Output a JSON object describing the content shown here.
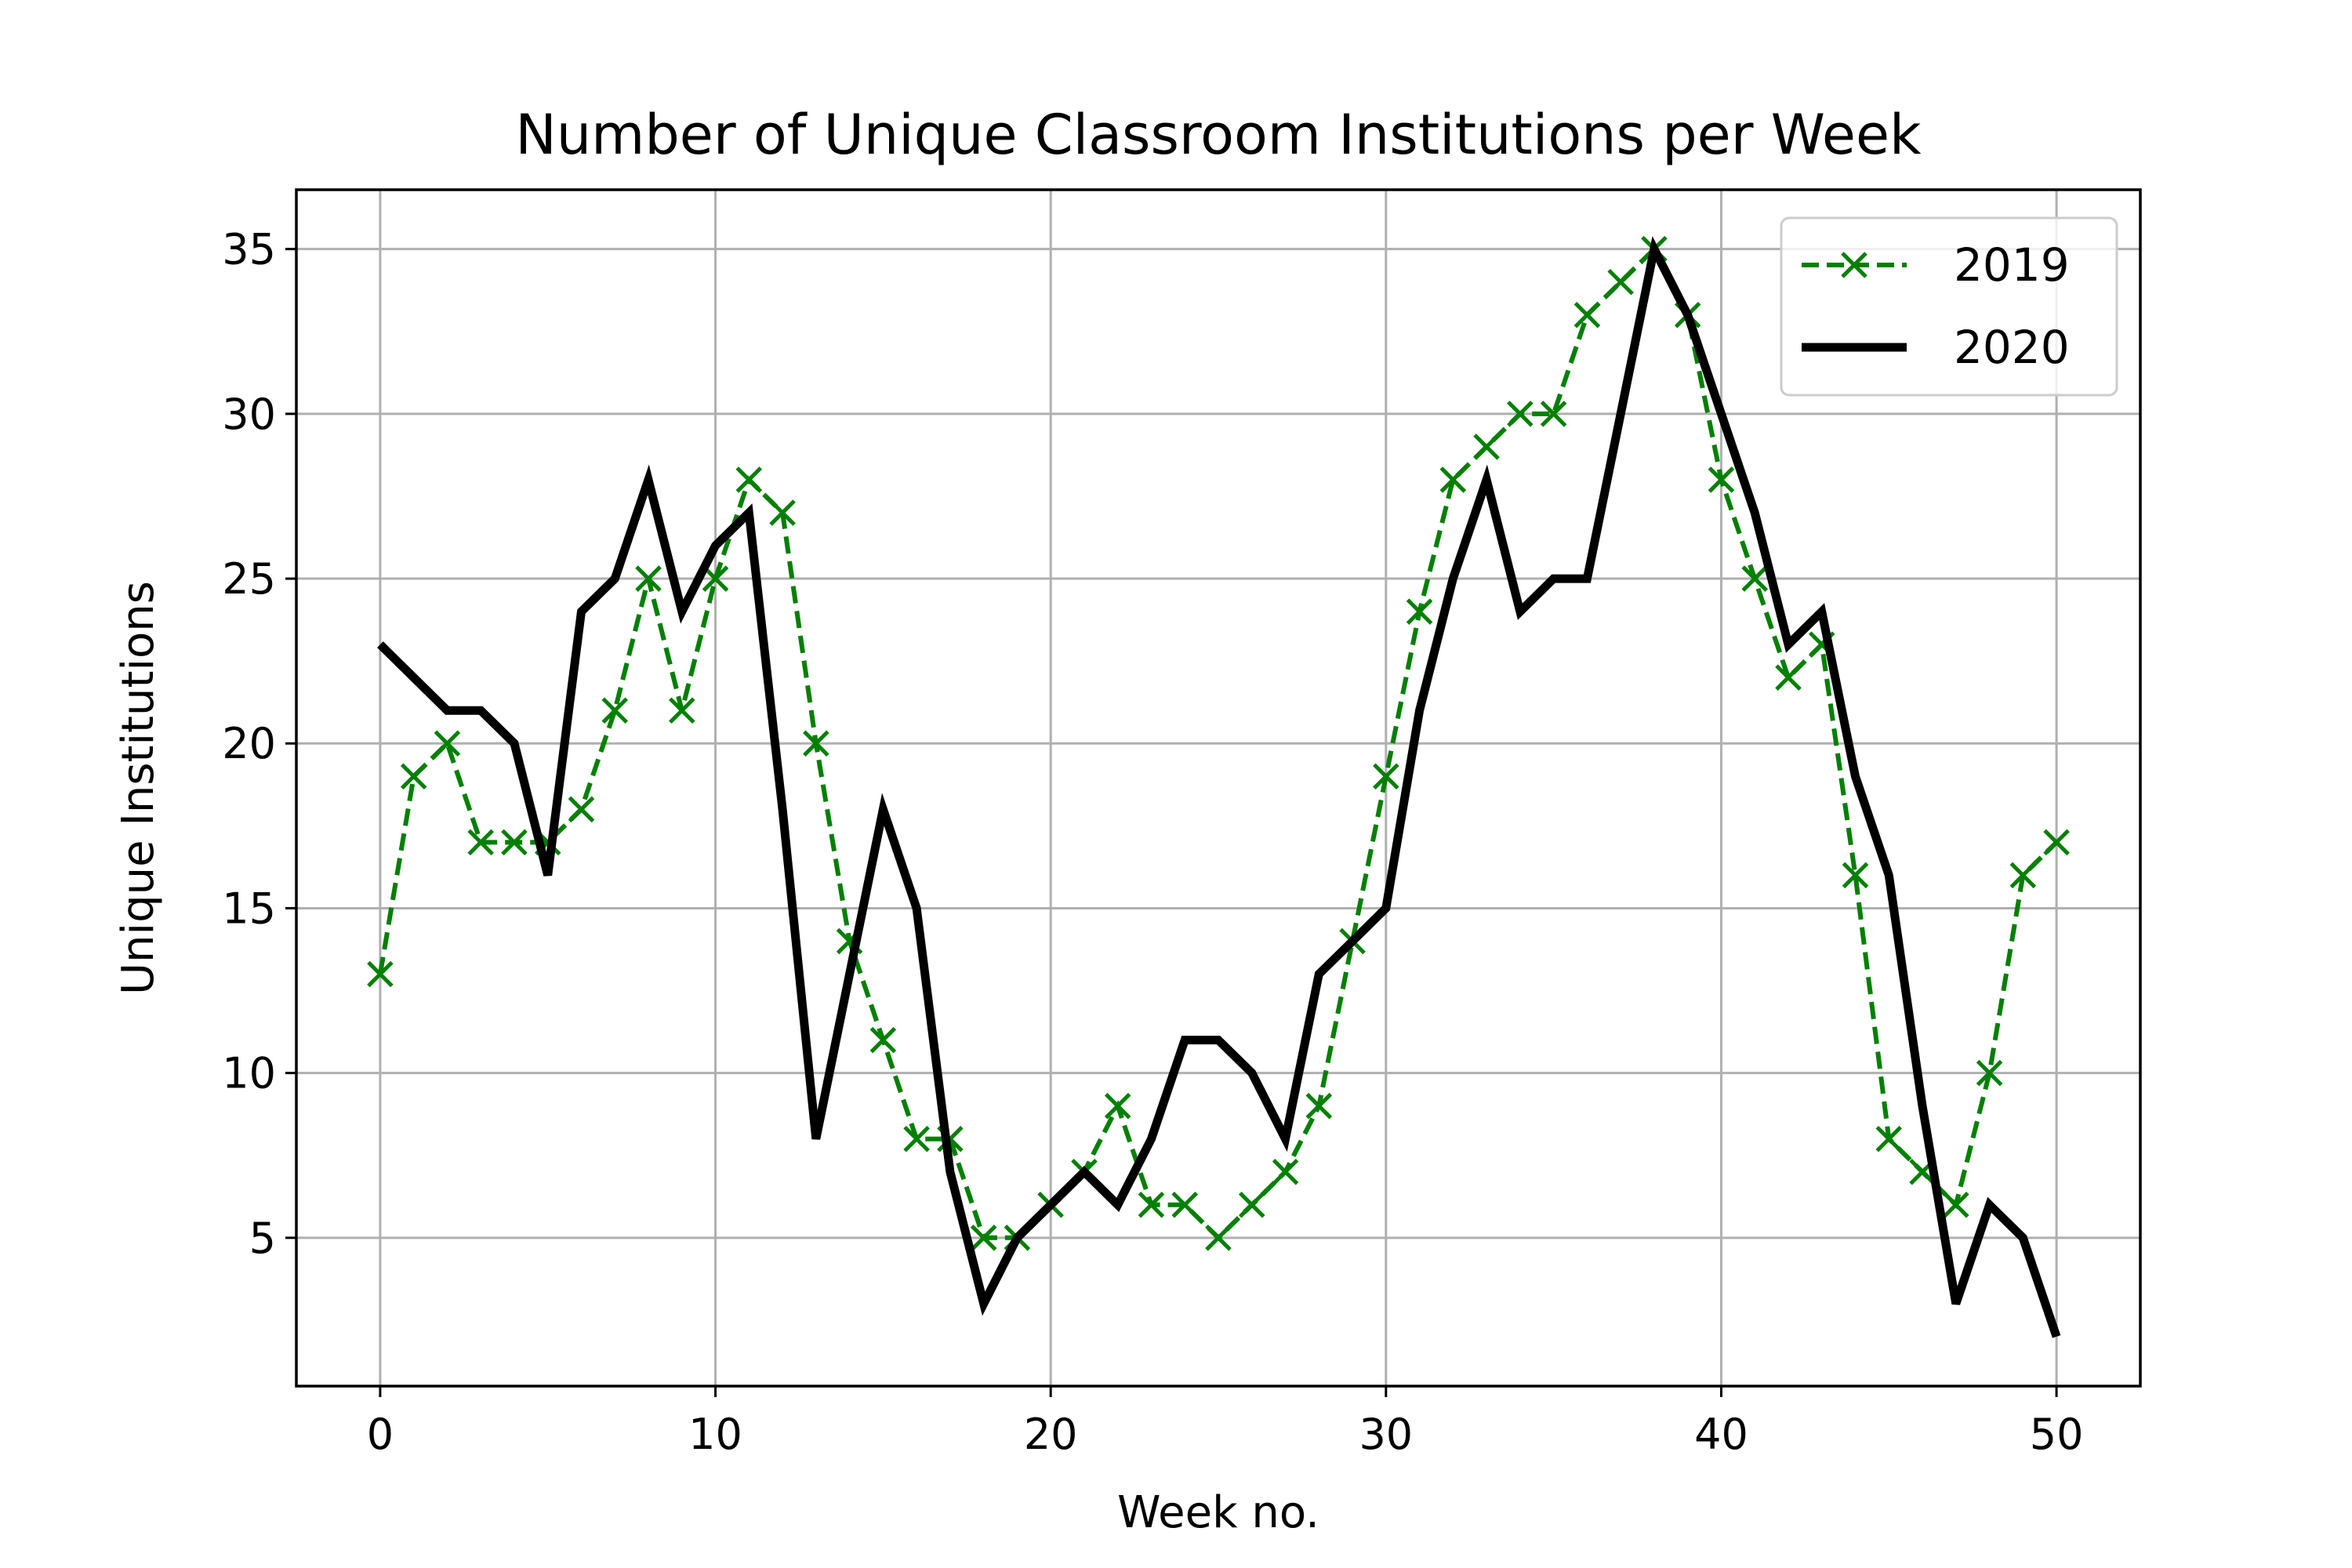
{
  "chart_data": {
    "type": "line",
    "title": "Number of Unique Classroom Institutions per Week",
    "xlabel": "Week no.",
    "ylabel": "Unique Institutions",
    "xlim": [
      -2.5,
      52.5
    ],
    "ylim": [
      0.5,
      36.8
    ],
    "xticks": [
      0,
      10,
      20,
      30,
      40,
      50
    ],
    "yticks": [
      5,
      10,
      15,
      20,
      25,
      30,
      35
    ],
    "grid": true,
    "legend_position": "top-right",
    "series": [
      {
        "name": "2019",
        "color": "#008000",
        "style": "dashed",
        "marker": "x",
        "x": [
          0,
          1,
          2,
          3,
          4,
          5,
          6,
          7,
          8,
          9,
          10,
          11,
          12,
          13,
          14,
          15,
          16,
          17,
          18,
          19,
          20,
          21,
          22,
          23,
          24,
          25,
          26,
          27,
          28,
          29,
          30,
          31,
          32,
          33,
          34,
          35,
          36,
          37,
          38,
          39,
          40,
          41,
          42,
          43,
          44,
          45,
          46,
          47,
          48,
          49,
          50
        ],
        "values": [
          13,
          19,
          20,
          17,
          17,
          17,
          18,
          21,
          25,
          21,
          25,
          28,
          27,
          20,
          14,
          11,
          8,
          8,
          5,
          5,
          6,
          7,
          9,
          6,
          6,
          5,
          6,
          7,
          9,
          14,
          19,
          24,
          28,
          29,
          30,
          30,
          33,
          34,
          35,
          33,
          28,
          25,
          22,
          23,
          16,
          8,
          7,
          6,
          10,
          16,
          17
        ]
      },
      {
        "name": "2020",
        "color": "#000000",
        "style": "solid",
        "marker": "none",
        "x": [
          0,
          1,
          2,
          3,
          4,
          5,
          6,
          7,
          8,
          9,
          10,
          11,
          12,
          13,
          14,
          15,
          16,
          17,
          18,
          19,
          20,
          21,
          22,
          23,
          24,
          25,
          26,
          27,
          28,
          29,
          30,
          31,
          32,
          33,
          34,
          35,
          36,
          37,
          38,
          39,
          40,
          41,
          42,
          43,
          44,
          45,
          46,
          47,
          48,
          49,
          50
        ],
        "values": [
          23,
          22,
          21,
          21,
          20,
          16,
          24,
          25,
          28,
          24,
          26,
          27,
          18,
          8,
          13,
          18,
          15,
          7,
          3,
          5,
          6,
          7,
          6,
          8,
          11,
          11,
          10,
          8,
          13,
          14,
          15,
          21,
          25,
          28,
          24,
          25,
          25,
          30,
          35,
          33,
          30,
          27,
          23,
          24,
          19,
          16,
          9,
          3,
          6,
          5,
          2
        ]
      }
    ]
  }
}
